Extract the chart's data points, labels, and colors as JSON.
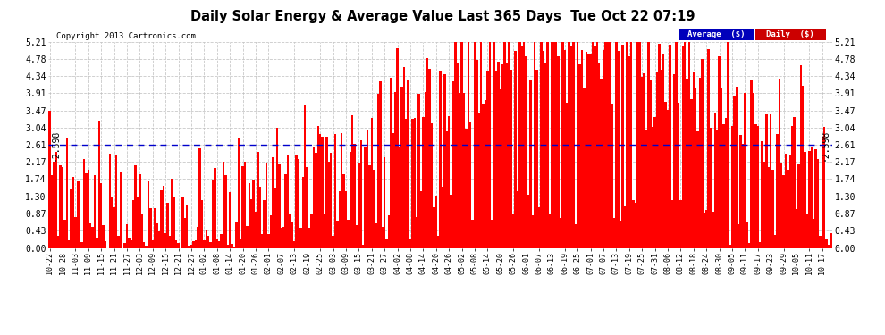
{
  "title": "Daily Solar Energy & Average Value Last 365 Days  Tue Oct 22 07:19",
  "copyright": "Copyright 2013 Cartronics.com",
  "average_label": "Average  ($)",
  "daily_label": "Daily  ($)",
  "average_value": 2.598,
  "ymax": 5.21,
  "ymin": 0.0,
  "yticks": [
    0.0,
    0.43,
    0.87,
    1.3,
    1.74,
    2.17,
    2.61,
    3.04,
    3.47,
    3.91,
    4.34,
    4.78,
    5.21
  ],
  "bar_color": "#FF0000",
  "avg_line_color": "#0000CC",
  "background_color": "#FFFFFF",
  "grid_color": "#BBBBBB",
  "avg_label_bg": "#0000BB",
  "daily_label_bg": "#CC0000",
  "n_days": 365,
  "x_tick_labels": [
    "10-22",
    "10-28",
    "11-03",
    "11-09",
    "11-15",
    "11-21",
    "11-27",
    "12-03",
    "12-09",
    "12-15",
    "12-21",
    "12-27",
    "01-02",
    "01-08",
    "01-14",
    "01-20",
    "01-26",
    "02-01",
    "02-07",
    "02-13",
    "02-19",
    "02-25",
    "03-03",
    "03-09",
    "03-15",
    "03-21",
    "03-27",
    "04-02",
    "04-08",
    "04-14",
    "04-20",
    "04-26",
    "05-02",
    "05-08",
    "05-14",
    "05-20",
    "05-26",
    "06-01",
    "06-07",
    "06-13",
    "06-19",
    "06-25",
    "07-01",
    "07-07",
    "07-13",
    "07-19",
    "07-25",
    "07-31",
    "08-06",
    "08-12",
    "08-18",
    "08-24",
    "08-30",
    "09-05",
    "09-11",
    "09-17",
    "09-23",
    "09-29",
    "10-05",
    "10-11",
    "10-17"
  ],
  "x_tick_positions": [
    0,
    6,
    12,
    18,
    24,
    30,
    36,
    42,
    48,
    54,
    60,
    66,
    72,
    78,
    84,
    90,
    96,
    102,
    108,
    114,
    120,
    126,
    132,
    138,
    144,
    150,
    156,
    162,
    168,
    174,
    180,
    186,
    192,
    198,
    204,
    210,
    216,
    222,
    228,
    234,
    240,
    246,
    252,
    258,
    264,
    270,
    276,
    282,
    288,
    294,
    300,
    306,
    312,
    318,
    324,
    330,
    336,
    342,
    348,
    354,
    360
  ]
}
